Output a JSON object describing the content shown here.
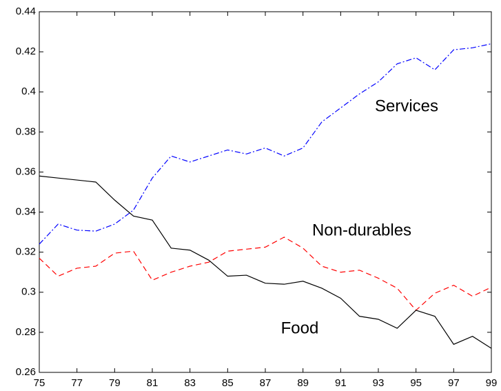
{
  "chart_data": {
    "type": "line",
    "x": [
      75,
      76,
      77,
      78,
      79,
      80,
      81,
      82,
      83,
      84,
      85,
      86,
      87,
      88,
      89,
      90,
      91,
      92,
      93,
      94,
      95,
      96,
      97,
      98,
      99
    ],
    "series": [
      {
        "name": "Services",
        "color": "#0000ff",
        "style": "dashdot",
        "values": [
          0.324,
          0.334,
          0.331,
          0.3305,
          0.334,
          0.341,
          0.357,
          0.368,
          0.365,
          0.368,
          0.371,
          0.369,
          0.372,
          0.368,
          0.372,
          0.385,
          0.392,
          0.399,
          0.405,
          0.414,
          0.417,
          0.411,
          0.421,
          0.422,
          0.424
        ]
      },
      {
        "name": "Non-durables",
        "color": "#ff0000",
        "style": "dashed",
        "values": [
          0.317,
          0.308,
          0.312,
          0.313,
          0.3195,
          0.3205,
          0.306,
          0.31,
          0.313,
          0.315,
          0.3205,
          0.3215,
          0.3225,
          0.3275,
          0.322,
          0.313,
          0.31,
          0.311,
          0.307,
          0.302,
          0.291,
          0.2995,
          0.3035,
          0.298,
          0.3025
        ]
      },
      {
        "name": "Food",
        "color": "#000000",
        "style": "solid",
        "values": [
          0.358,
          0.357,
          0.356,
          0.355,
          0.346,
          0.338,
          0.336,
          0.322,
          0.321,
          0.316,
          0.308,
          0.3085,
          0.3045,
          0.304,
          0.3055,
          0.302,
          0.297,
          0.288,
          0.2865,
          0.282,
          0.291,
          0.288,
          0.274,
          0.278,
          0.272
        ]
      }
    ],
    "xlim": [
      75,
      99
    ],
    "xticks": [
      75,
      77,
      79,
      81,
      83,
      85,
      87,
      89,
      91,
      93,
      95,
      97,
      99
    ],
    "ylim": [
      0.26,
      0.44
    ],
    "yticks": [
      0.26,
      0.28,
      0.3,
      0.32,
      0.34,
      0.36,
      0.38,
      0.4,
      0.42,
      0.44
    ],
    "grid": false
  }
}
